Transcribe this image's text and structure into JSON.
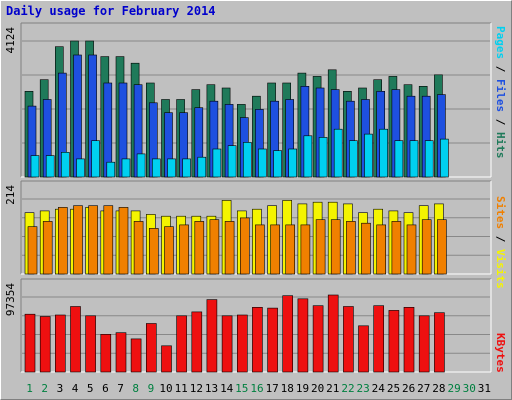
{
  "chart_data": {
    "type": "bar",
    "title": "Daily usage for February 2014",
    "x": [
      "1",
      "2",
      "3",
      "4",
      "5",
      "6",
      "7",
      "8",
      "9",
      "10",
      "11",
      "12",
      "13",
      "14",
      "15",
      "16",
      "17",
      "18",
      "19",
      "20",
      "21",
      "22",
      "23",
      "24",
      "25",
      "26",
      "27",
      "28",
      "29",
      "30",
      "31"
    ],
    "weekend_days": [
      "1",
      "2",
      "8",
      "9",
      "15",
      "16",
      "22",
      "23",
      "29",
      "30"
    ],
    "panels": [
      {
        "id": "top",
        "max_label": "4124",
        "ylim": [
          0,
          4124
        ],
        "series": [
          {
            "name": "Hits",
            "color": "#1f7a5a",
            "values": [
              2600,
              2950,
              3950,
              4124,
              4124,
              3650,
              3650,
              3450,
              2850,
              2350,
              2350,
              2650,
              2800,
              2700,
              2200,
              2450,
              2850,
              2850,
              3150,
              3050,
              3250,
              2600,
              2700,
              2950,
              3050,
              2800,
              2750,
              3100
            ]
          },
          {
            "name": "Files",
            "color": "#1e50e0",
            "values": [
              2150,
              2350,
              3150,
              3700,
              3700,
              2850,
              2850,
              2800,
              2250,
              1950,
              1950,
              2100,
              2300,
              2200,
              1800,
              2050,
              2300,
              2350,
              2750,
              2700,
              2650,
              2300,
              2350,
              2600,
              2650,
              2450,
              2450,
              2500
            ]
          },
          {
            "name": "Pages",
            "color": "#00d0f0",
            "values": [
              650,
              650,
              750,
              550,
              1100,
              450,
              550,
              700,
              550,
              550,
              550,
              600,
              850,
              950,
              1050,
              850,
              800,
              850,
              1250,
              1200,
              1450,
              1100,
              1300,
              1450,
              1100,
              1100,
              1100,
              1150
            ]
          }
        ]
      },
      {
        "id": "mid",
        "max_label": "214",
        "ylim": [
          0,
          214
        ],
        "series": [
          {
            "name": "Visits",
            "color": "#f4f400",
            "values": [
              175,
              180,
              185,
              185,
              190,
              180,
              180,
              180,
              170,
              165,
              165,
              165,
              165,
              210,
              180,
              185,
              195,
              210,
              200,
              205,
              205,
              200,
              175,
              185,
              180,
              175,
              195,
              200
            ]
          },
          {
            "name": "Sites",
            "color": "#f08000",
            "values": [
              135,
              150,
              190,
              195,
              195,
              195,
              190,
              150,
              130,
              135,
              140,
              150,
              155,
              150,
              160,
              140,
              140,
              140,
              140,
              155,
              155,
              150,
              145,
              140,
              150,
              140,
              155,
              155
            ]
          }
        ]
      },
      {
        "id": "bottom",
        "max_label": "97354",
        "ylim": [
          0,
          97354
        ],
        "series": [
          {
            "name": "KBytes",
            "color": "#ee1010",
            "values": [
              75000,
              72000,
              74000,
              85000,
              73000,
              49000,
              51000,
              43000,
              63000,
              34000,
              73000,
              78000,
              94000,
              73000,
              74000,
              84000,
              83000,
              99000,
              95000,
              86000,
              100000,
              85000,
              60000,
              86000,
              80000,
              84000,
              73000,
              77000
            ]
          }
        ]
      }
    ],
    "legend": [
      "Pages / Files / Hits",
      "Sites / Visits",
      "KBytes"
    ]
  },
  "colors": {
    "background": "#c0c0c0",
    "title": "#0000cc",
    "weekday_label": "#000000",
    "weekend_label": "#008040"
  }
}
